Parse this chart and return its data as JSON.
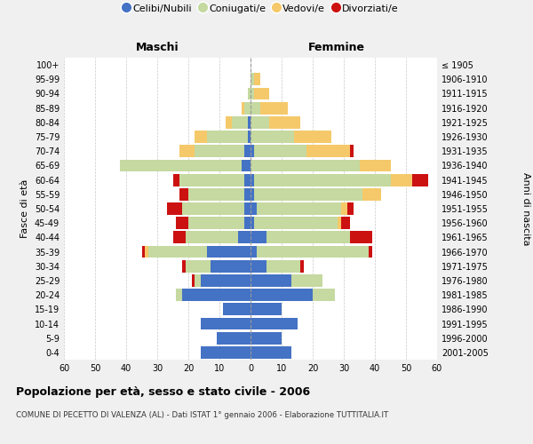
{
  "age_groups": [
    "0-4",
    "5-9",
    "10-14",
    "15-19",
    "20-24",
    "25-29",
    "30-34",
    "35-39",
    "40-44",
    "45-49",
    "50-54",
    "55-59",
    "60-64",
    "65-69",
    "70-74",
    "75-79",
    "80-84",
    "85-89",
    "90-94",
    "95-99",
    "100+"
  ],
  "birth_years": [
    "2001-2005",
    "1996-2000",
    "1991-1995",
    "1986-1990",
    "1981-1985",
    "1976-1980",
    "1971-1975",
    "1966-1970",
    "1961-1965",
    "1956-1960",
    "1951-1955",
    "1946-1950",
    "1941-1945",
    "1936-1940",
    "1931-1935",
    "1926-1930",
    "1921-1925",
    "1916-1920",
    "1911-1915",
    "1906-1910",
    "≤ 1905"
  ],
  "male": {
    "celibi": [
      16,
      11,
      16,
      9,
      22,
      16,
      13,
      14,
      4,
      2,
      2,
      2,
      2,
      3,
      2,
      1,
      1,
      0,
      0,
      0,
      0
    ],
    "coniugati": [
      0,
      0,
      0,
      0,
      2,
      2,
      8,
      19,
      17,
      18,
      20,
      18,
      21,
      39,
      16,
      13,
      5,
      2,
      1,
      0,
      0
    ],
    "vedovi": [
      0,
      0,
      0,
      0,
      0,
      0,
      0,
      1,
      0,
      0,
      0,
      0,
      0,
      0,
      5,
      4,
      2,
      1,
      0,
      0,
      0
    ],
    "divorziati": [
      0,
      0,
      0,
      0,
      0,
      1,
      1,
      1,
      4,
      4,
      5,
      3,
      2,
      0,
      0,
      0,
      0,
      0,
      0,
      0,
      0
    ]
  },
  "female": {
    "nubili": [
      13,
      10,
      15,
      10,
      20,
      13,
      5,
      2,
      5,
      1,
      2,
      1,
      1,
      0,
      1,
      0,
      0,
      0,
      0,
      0,
      0
    ],
    "coniugate": [
      0,
      0,
      0,
      0,
      7,
      10,
      11,
      36,
      27,
      27,
      27,
      35,
      44,
      35,
      17,
      14,
      6,
      3,
      1,
      1,
      0
    ],
    "vedove": [
      0,
      0,
      0,
      0,
      0,
      0,
      0,
      0,
      0,
      1,
      2,
      6,
      7,
      10,
      14,
      12,
      10,
      9,
      5,
      2,
      0
    ],
    "divorziate": [
      0,
      0,
      0,
      0,
      0,
      0,
      1,
      1,
      7,
      3,
      2,
      0,
      5,
      0,
      1,
      0,
      0,
      0,
      0,
      0,
      0
    ]
  },
  "colors": {
    "celibi_nubili": "#4472c4",
    "coniugati": "#c5d9a0",
    "vedovi": "#f5c96a",
    "divorziati": "#cc1111"
  },
  "xlim": 60,
  "xtick_step": 10,
  "title": "Popolazione per età, sesso e stato civile - 2006",
  "subtitle": "COMUNE DI PECETTO DI VALENZA (AL) - Dati ISTAT 1° gennaio 2006 - Elaborazione TUTTITALIA.IT",
  "xlabel_left": "Maschi",
  "xlabel_right": "Femmine",
  "ylabel_left": "Fasce di età",
  "ylabel_right": "Anni di nascita",
  "legend_labels": [
    "Celibi/Nubili",
    "Coniugati/e",
    "Vedovi/e",
    "Divorziati/e"
  ],
  "bg_color": "#f0f0f0",
  "plot_bg": "#ffffff"
}
